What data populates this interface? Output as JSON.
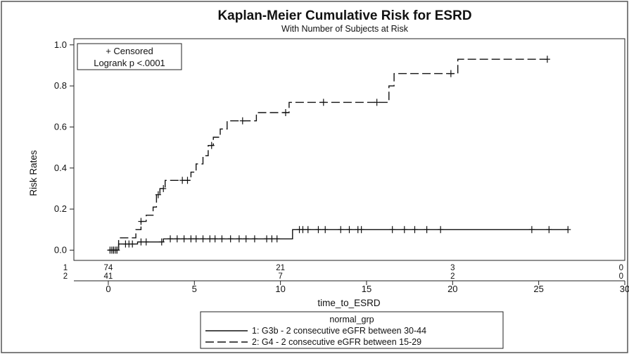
{
  "chart_data": {
    "type": "line",
    "title": "Kaplan-Meier Cumulative Risk for ESRD",
    "subtitle": "With Number of Subjects at Risk",
    "xlabel": "time_to_ESRD",
    "ylabel": "Risk Rates",
    "xlim": [
      -2,
      30
    ],
    "ylim": [
      -0.05,
      1.03
    ],
    "x_ticks": [
      "0",
      "5",
      "10",
      "15",
      "20",
      "25",
      "30"
    ],
    "y_ticks": [
      "0.0",
      "0.2",
      "0.4",
      "0.6",
      "0.8",
      "1.0"
    ],
    "inset": {
      "line1": "+ Censored",
      "line2": "Logrank p <.0001"
    },
    "legend": {
      "title": "normal_grp",
      "placement": "bottom",
      "entries": [
        {
          "label": "1: G3b - 2 consecutive eGFR between 30-44",
          "style": "solid"
        },
        {
          "label": "2: G4 - 2 consecutive eGFR between 15-29",
          "style": "dashed"
        }
      ]
    },
    "at_risk": {
      "times": [
        0,
        10,
        20,
        30
      ],
      "rows": [
        {
          "label": "1",
          "counts": [
            "74",
            "21",
            "3",
            "0"
          ]
        },
        {
          "label": "2",
          "counts": [
            "41",
            "7",
            "2",
            "0"
          ]
        }
      ]
    },
    "series": [
      {
        "group": "1",
        "style": "solid",
        "steps": [
          [
            0,
            0
          ],
          [
            0.6,
            0.03
          ],
          [
            1.7,
            0.04
          ],
          [
            3.2,
            0.055
          ],
          [
            10.7,
            0.1
          ],
          [
            26.7,
            0.1
          ]
        ],
        "censored": [
          0.1,
          0.2,
          0.3,
          0.4,
          0.5,
          1.0,
          1.2,
          1.4,
          1.9,
          2.2,
          3.1,
          3.6,
          4.0,
          4.4,
          4.8,
          5.1,
          5.5,
          5.9,
          6.2,
          6.6,
          7.1,
          7.6,
          8.0,
          8.5,
          9.2,
          9.5,
          9.8,
          11.1,
          11.3,
          11.6,
          12.2,
          12.6,
          13.5,
          14.0,
          14.5,
          14.7,
          16.5,
          17.2,
          17.8,
          18.5,
          19.3,
          24.6,
          25.6,
          26.7
        ]
      },
      {
        "group": "2",
        "style": "dashed",
        "steps": [
          [
            0,
            0
          ],
          [
            0.6,
            0.06
          ],
          [
            1.6,
            0.1
          ],
          [
            1.9,
            0.14
          ],
          [
            2.2,
            0.17
          ],
          [
            2.6,
            0.21
          ],
          [
            2.8,
            0.27
          ],
          [
            3.0,
            0.3
          ],
          [
            3.3,
            0.34
          ],
          [
            4.8,
            0.38
          ],
          [
            5.1,
            0.42
          ],
          [
            5.5,
            0.46
          ],
          [
            5.8,
            0.51
          ],
          [
            6.1,
            0.55
          ],
          [
            6.5,
            0.59
          ],
          [
            6.9,
            0.63
          ],
          [
            8.6,
            0.67
          ],
          [
            10.5,
            0.72
          ],
          [
            16.3,
            0.8
          ],
          [
            16.6,
            0.86
          ],
          [
            20.3,
            0.93
          ],
          [
            25.5,
            0.93
          ]
        ],
        "censored": [
          0.3,
          0.5,
          1.9,
          2.9,
          3.2,
          4.3,
          4.6,
          6.0,
          7.8,
          10.3,
          12.5,
          15.6,
          19.9,
          25.5
        ]
      }
    ]
  }
}
